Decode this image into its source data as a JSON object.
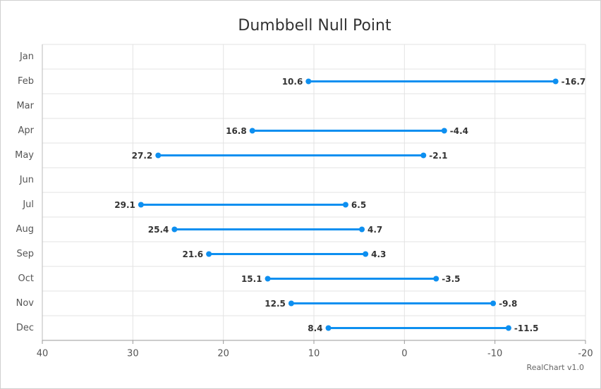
{
  "chart_data": {
    "type": "dumbbell",
    "title": "Dumbbell Null Point",
    "categories": [
      "Jan",
      "Feb",
      "Mar",
      "Apr",
      "May",
      "Jun",
      "Jul",
      "Aug",
      "Sep",
      "Oct",
      "Nov",
      "Dec"
    ],
    "start_values": [
      null,
      10.6,
      null,
      16.8,
      27.2,
      null,
      29.1,
      25.4,
      21.6,
      15.1,
      12.5,
      8.4
    ],
    "end_values": [
      null,
      -16.7,
      null,
      -4.4,
      -2.1,
      null,
      6.5,
      4.7,
      4.3,
      -3.5,
      -9.8,
      -11.5
    ],
    "color": "#0d8ff0",
    "xlim": [
      40,
      -20
    ],
    "xticks": [
      40,
      30,
      20,
      10,
      0,
      -10,
      -20
    ],
    "grid": true,
    "credit": "RealChart v1.0"
  }
}
